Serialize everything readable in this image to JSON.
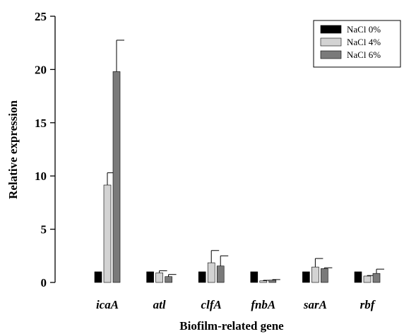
{
  "chart_data": {
    "type": "bar",
    "title": "",
    "xlabel": "Biofilm-related gene",
    "ylabel": "Relative expression",
    "ylim": [
      0,
      25
    ],
    "yticks": [
      "0",
      "5",
      "10",
      "15",
      "20",
      "25"
    ],
    "categories": [
      "icaA",
      "atl",
      "clfA",
      "fnbA",
      "sarA",
      "rbf"
    ],
    "series": [
      {
        "name": "NaCl 0%",
        "color": "#000000",
        "values": [
          1.0,
          1.0,
          1.0,
          1.0,
          1.0,
          1.0
        ],
        "errors": [
          0,
          0,
          0,
          0,
          0,
          0
        ]
      },
      {
        "name": "NaCl 4%",
        "color": "#d3d3d3",
        "values": [
          9.15,
          0.9,
          1.85,
          0.15,
          1.45,
          0.6
        ],
        "errors": [
          1.15,
          0.2,
          1.15,
          0.05,
          0.8,
          0.05
        ]
      },
      {
        "name": "NaCl 6%",
        "color": "#7a7a7a",
        "values": [
          19.8,
          0.55,
          1.55,
          0.22,
          1.3,
          0.85
        ],
        "errors": [
          2.95,
          0.2,
          0.95,
          0.05,
          0.08,
          0.4
        ]
      }
    ],
    "legend_position": "top-right",
    "grid": false
  }
}
